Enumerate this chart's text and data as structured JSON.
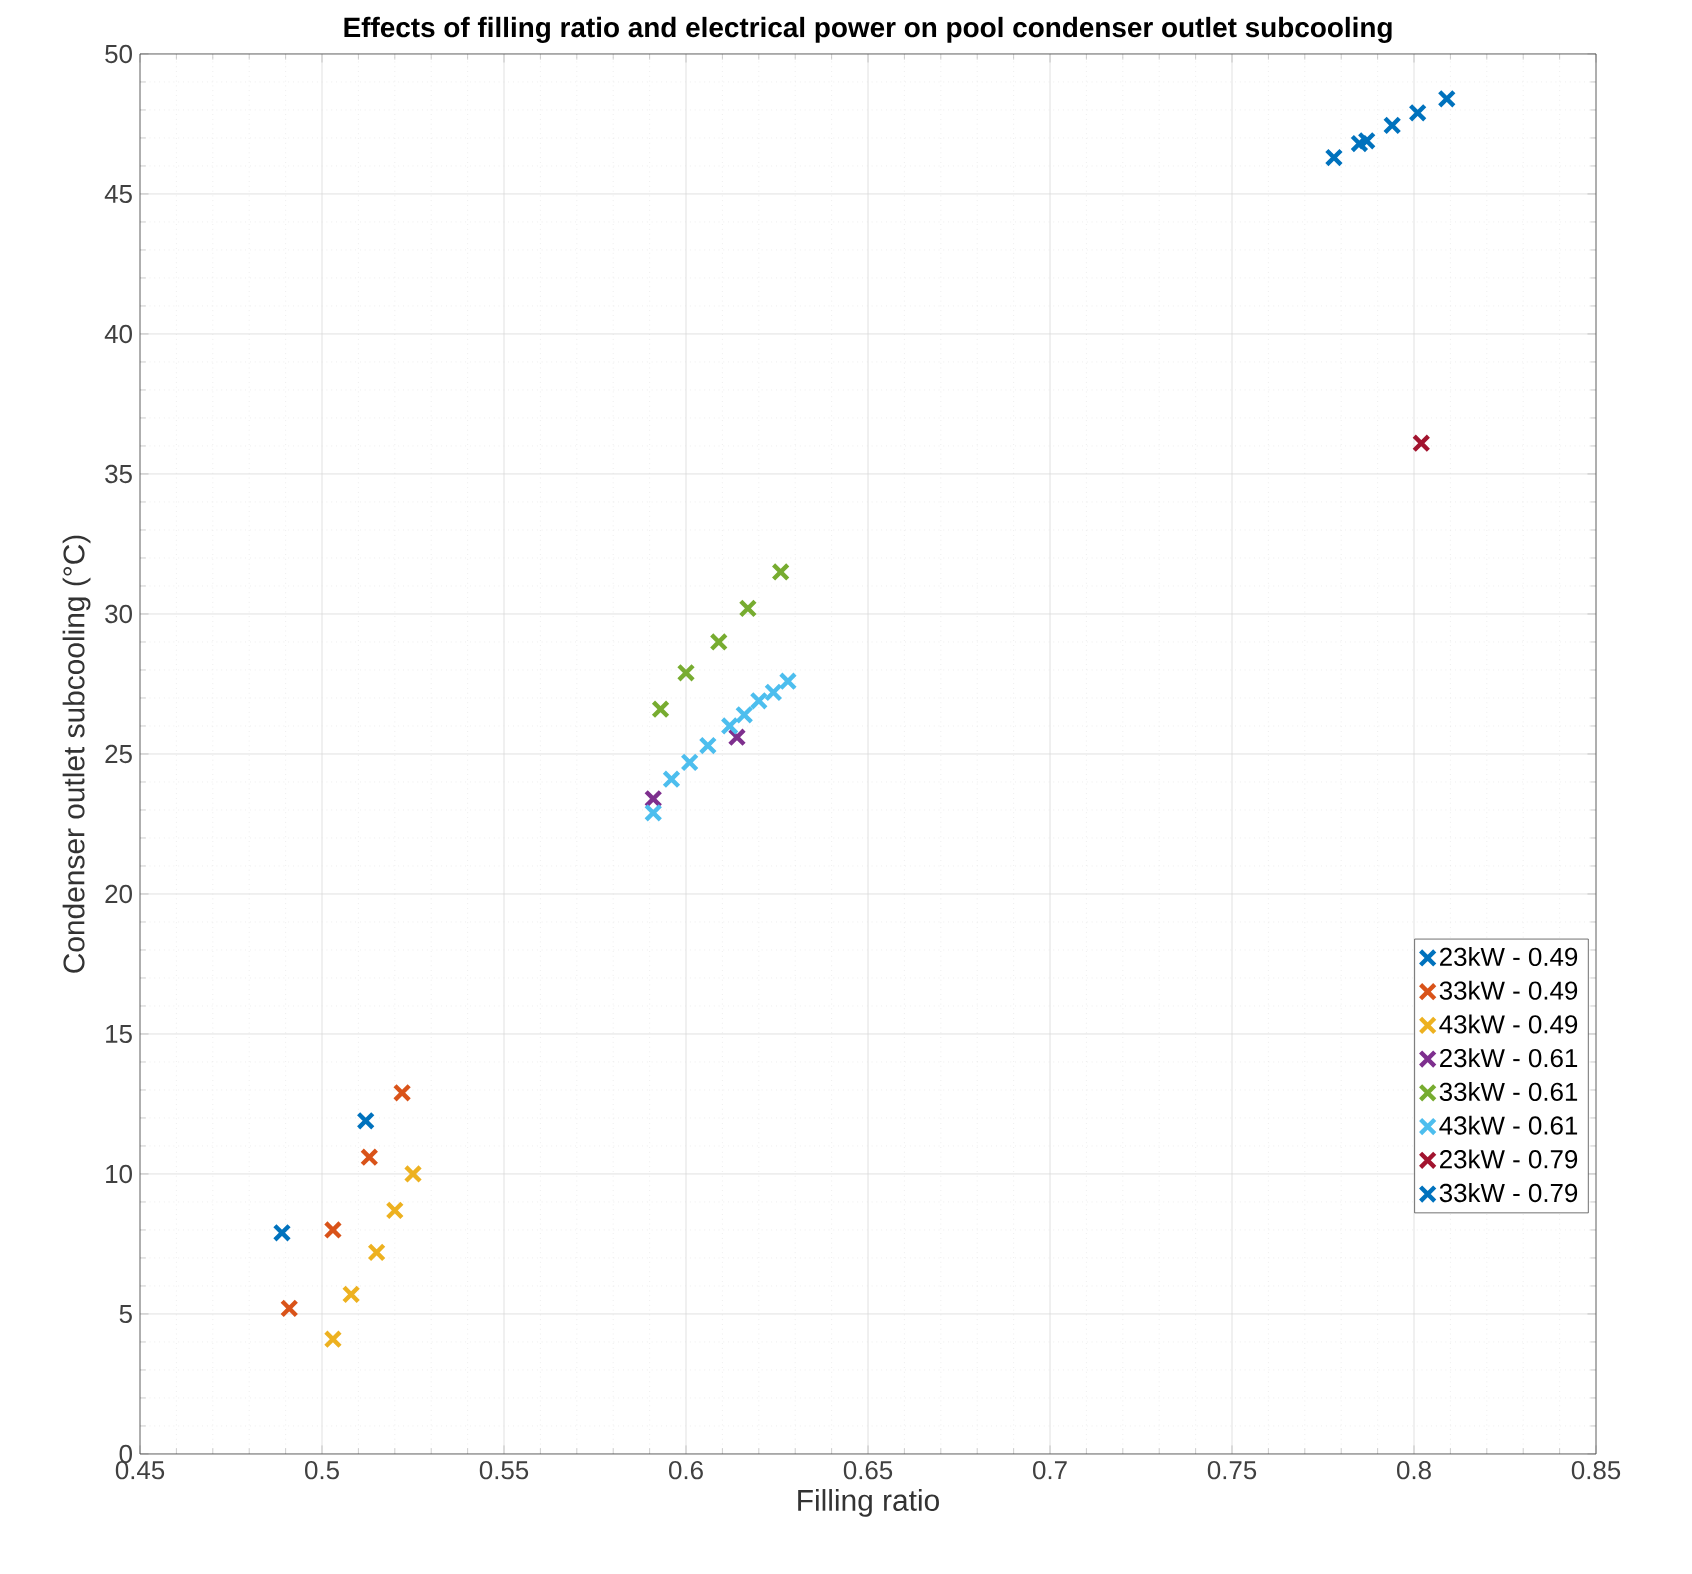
{
  "chart_data": {
    "type": "scatter",
    "title": "Effects of filling ratio and electrical power on pool condenser outlet subcooling",
    "xlabel": "Filling ratio",
    "ylabel": "Condenser outlet subcooling (°C)",
    "xlim": [
      0.45,
      0.85
    ],
    "xticks": [
      0.45,
      0.5,
      0.55,
      0.6,
      0.65,
      0.7,
      0.75,
      0.8,
      0.85
    ],
    "ylim": [
      0,
      50
    ],
    "yticks": [
      0,
      5,
      10,
      15,
      20,
      25,
      30,
      35,
      40,
      45,
      50
    ],
    "grid": true,
    "legend": "right",
    "marker": "cross",
    "series": [
      {
        "name": "23kW - 0.49",
        "color": "#0072bd",
        "x": [
          0.489,
          0.512
        ],
        "values": [
          7.9,
          11.9
        ]
      },
      {
        "name": "33kW - 0.49",
        "color": "#d95319",
        "x": [
          0.491,
          0.503,
          0.513,
          0.522
        ],
        "values": [
          5.2,
          8.0,
          10.6,
          12.9
        ]
      },
      {
        "name": "43kW - 0.49",
        "color": "#edb120",
        "x": [
          0.503,
          0.508,
          0.515,
          0.52,
          0.525
        ],
        "values": [
          4.1,
          5.7,
          7.2,
          8.7,
          10.0
        ]
      },
      {
        "name": "23kW - 0.61",
        "color": "#7e2f8e",
        "x": [
          0.591,
          0.614
        ],
        "values": [
          23.4,
          25.6
        ]
      },
      {
        "name": "33kW - 0.61",
        "color": "#77ac30",
        "x": [
          0.593,
          0.6,
          0.609,
          0.617,
          0.626
        ],
        "values": [
          26.6,
          27.9,
          29.0,
          30.2,
          31.5
        ]
      },
      {
        "name": "43kW - 0.61",
        "color": "#4dbeee",
        "x": [
          0.591,
          0.596,
          0.601,
          0.606,
          0.612,
          0.616,
          0.62,
          0.624,
          0.628
        ],
        "values": [
          22.9,
          24.1,
          24.7,
          25.3,
          26.0,
          26.4,
          26.9,
          27.2,
          27.6
        ]
      },
      {
        "name": "23kW - 0.79",
        "color": "#a2142f",
        "x": [
          0.802
        ],
        "values": [
          36.1
        ]
      },
      {
        "name": "33kW - 0.79",
        "color": "#0072bd",
        "x": [
          0.778,
          0.785,
          0.787,
          0.794,
          0.801,
          0.809
        ],
        "values": [
          46.3,
          46.8,
          46.9,
          47.45,
          47.9,
          48.4
        ]
      }
    ]
  }
}
